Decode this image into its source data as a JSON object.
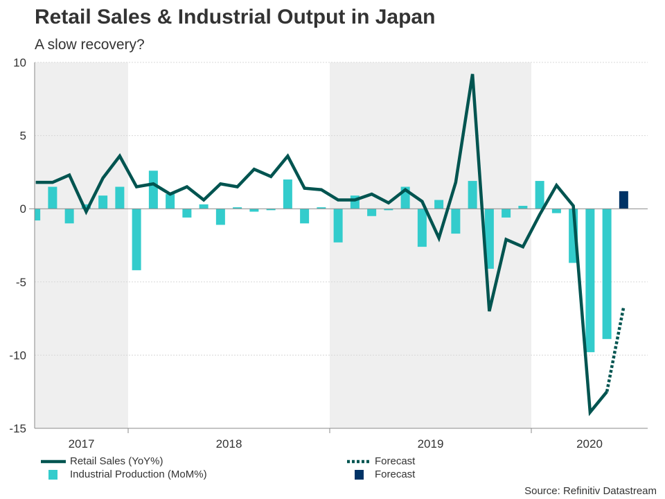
{
  "chart_data": {
    "type": "bar+line",
    "title": "Retail Sales & Industrial Output in Japan",
    "subtitle": "A slow recovery?",
    "source": "Source: Refinitiv Datastream",
    "ylim": [
      -15,
      10
    ],
    "yticks": [
      10,
      5,
      0,
      -5,
      -10,
      -15
    ],
    "grid": true,
    "legend_placement": "bottom",
    "x_year_labels": [
      "2017",
      "2018",
      "2019",
      "2020"
    ],
    "shaded_years": [
      "2017",
      "2019"
    ],
    "months": [
      "2017-07",
      "2017-08",
      "2017-09",
      "2017-10",
      "2017-11",
      "2017-12",
      "2018-01",
      "2018-02",
      "2018-03",
      "2018-04",
      "2018-05",
      "2018-06",
      "2018-07",
      "2018-08",
      "2018-09",
      "2018-10",
      "2018-11",
      "2018-12",
      "2019-01",
      "2019-02",
      "2019-03",
      "2019-04",
      "2019-05",
      "2019-06",
      "2019-07",
      "2019-08",
      "2019-09",
      "2019-10",
      "2019-11",
      "2019-12",
      "2020-01",
      "2020-02",
      "2020-03",
      "2020-04",
      "2020-05",
      "2020-06"
    ],
    "series": [
      {
        "name": "Retail Sales (YoY%)",
        "kind": "line",
        "color": "#005450",
        "values": [
          1.8,
          1.8,
          2.3,
          -0.2,
          2.1,
          3.6,
          1.5,
          1.7,
          1.0,
          1.5,
          0.6,
          1.7,
          1.5,
          2.7,
          2.2,
          3.6,
          1.4,
          1.3,
          0.6,
          0.6,
          1.0,
          0.4,
          1.3,
          0.5,
          -2.0,
          1.8,
          9.2,
          -7.0,
          -2.1,
          -2.6,
          -0.4,
          1.6,
          0.2,
          -13.9,
          -12.5,
          null
        ]
      },
      {
        "name": "Forecast",
        "kind": "dotted-line",
        "color": "#005450",
        "points": [
          [
            "2020-05",
            -12.5
          ],
          [
            "2020-06",
            -6.7
          ]
        ]
      },
      {
        "name": "Industrial Production (MoM%)",
        "kind": "bar",
        "color": "#33cccc",
        "values": [
          -0.8,
          1.5,
          -1.0,
          0.3,
          0.9,
          1.5,
          -4.2,
          2.6,
          1.0,
          -0.6,
          0.3,
          -1.1,
          0.1,
          -0.2,
          -0.1,
          2.0,
          -1.0,
          0.1,
          -2.3,
          0.9,
          -0.5,
          -0.1,
          1.5,
          -2.6,
          0.6,
          -1.7,
          1.9,
          -4.1,
          -0.6,
          0.2,
          1.9,
          -0.3,
          -3.7,
          -9.8,
          -8.9,
          null
        ]
      },
      {
        "name": "Forecast",
        "kind": "bar",
        "color": "#003366",
        "points": [
          [
            "2020-06",
            1.2
          ]
        ]
      }
    ]
  }
}
